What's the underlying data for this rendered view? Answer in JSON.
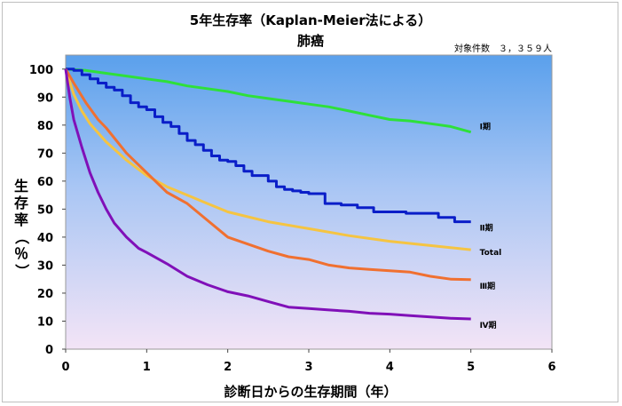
{
  "chart_data": {
    "type": "line",
    "title": "5年生存率（Kaplan-Meier法による）",
    "subtitle": "肺癌",
    "annotation": "対象件数　３，３５９人",
    "xlabel": "診断日からの生存期間（年）",
    "ylabel": "生存率（％）",
    "xlim": [
      0,
      6
    ],
    "ylim": [
      0,
      105
    ],
    "x_ticks": [
      0,
      1,
      2,
      3,
      4,
      5,
      6
    ],
    "y_ticks": [
      0,
      10,
      20,
      30,
      40,
      50,
      60,
      70,
      80,
      90,
      100
    ],
    "grid": false,
    "series": [
      {
        "name": "Ⅰ期",
        "color": "#2ee03a",
        "step": false,
        "x": [
          0,
          0.25,
          0.5,
          0.75,
          1.0,
          1.25,
          1.5,
          1.75,
          2.0,
          2.25,
          2.5,
          2.75,
          3.0,
          3.25,
          3.5,
          3.75,
          4.0,
          4.25,
          4.5,
          4.75,
          5.0
        ],
        "y": [
          100,
          99.5,
          98.5,
          97.5,
          96.5,
          95.5,
          94,
          93,
          92,
          90.5,
          89.5,
          88.5,
          87.5,
          86.5,
          85,
          83.5,
          82,
          81.5,
          80.5,
          79.5,
          77.5
        ]
      },
      {
        "name": "Ⅱ期",
        "color": "#0a1ec8",
        "step": true,
        "x": [
          0,
          0.1,
          0.2,
          0.3,
          0.4,
          0.5,
          0.6,
          0.7,
          0.8,
          0.9,
          1.0,
          1.1,
          1.2,
          1.3,
          1.4,
          1.5,
          1.6,
          1.7,
          1.8,
          1.9,
          2.0,
          2.1,
          2.2,
          2.3,
          2.4,
          2.5,
          2.6,
          2.7,
          2.8,
          2.9,
          3.0,
          3.2,
          3.4,
          3.6,
          3.8,
          4.0,
          4.2,
          4.4,
          4.6,
          4.8,
          5.0
        ],
        "y": [
          100,
          99.5,
          98,
          96.5,
          95,
          93.5,
          92.5,
          90.5,
          88,
          86.5,
          85.5,
          83,
          81,
          79.5,
          77,
          74.5,
          73,
          71,
          69,
          67.5,
          67,
          65.5,
          63.5,
          62,
          62,
          60,
          58,
          57,
          56.5,
          56,
          55.5,
          52,
          51.5,
          50.5,
          49,
          49,
          48.5,
          48.5,
          47,
          45.5,
          45.5
        ]
      },
      {
        "name": "Total",
        "color": "#f5c442",
        "step": false,
        "x": [
          0,
          0.1,
          0.2,
          0.3,
          0.5,
          0.75,
          1.0,
          1.25,
          1.5,
          1.75,
          2.0,
          2.5,
          3.0,
          3.5,
          4.0,
          4.5,
          5.0
        ],
        "y": [
          100,
          91,
          85,
          80.5,
          74,
          67.5,
          62,
          58,
          55,
          52,
          49,
          45.5,
          43,
          40.5,
          38.5,
          37,
          35.5
        ]
      },
      {
        "name": "Ⅲ期",
        "color": "#f07030",
        "step": false,
        "x": [
          0,
          0.1,
          0.25,
          0.4,
          0.5,
          0.75,
          1.0,
          1.25,
          1.5,
          1.75,
          2.0,
          2.25,
          2.5,
          2.75,
          3.0,
          3.25,
          3.5,
          3.75,
          4.0,
          4.25,
          4.5,
          4.75,
          5.0
        ],
        "y": [
          100,
          95,
          88,
          82,
          79,
          70,
          63,
          56,
          52,
          46,
          40,
          37.5,
          35,
          33,
          32,
          30,
          29,
          28.5,
          28,
          27.5,
          26,
          25,
          24.8
        ]
      },
      {
        "name": "Ⅳ期",
        "color": "#8010b8",
        "step": false,
        "x": [
          0,
          0.05,
          0.1,
          0.2,
          0.3,
          0.4,
          0.5,
          0.6,
          0.75,
          0.9,
          1.0,
          1.25,
          1.5,
          1.75,
          2.0,
          2.25,
          2.5,
          2.75,
          3.0,
          3.25,
          3.5,
          3.75,
          4.0,
          4.25,
          4.5,
          4.75,
          5.0
        ],
        "y": [
          100,
          90,
          82,
          72,
          63,
          56,
          50,
          45,
          40,
          36,
          34.5,
          30.5,
          26,
          23,
          20.5,
          19,
          17,
          15,
          14.5,
          14,
          13.5,
          12.8,
          12.5,
          12,
          11.5,
          11,
          10.8
        ]
      }
    ],
    "series_labels": [
      {
        "text": "Ⅰ期"
      },
      {
        "text": "Ⅱ期"
      },
      {
        "text": "Total"
      },
      {
        "text": "Ⅲ期"
      },
      {
        "text": "Ⅳ期"
      }
    ]
  }
}
